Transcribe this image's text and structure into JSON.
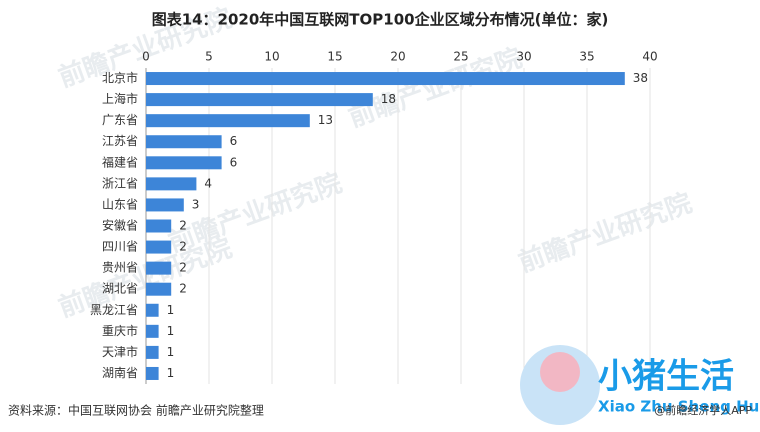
{
  "chart_data": {
    "type": "hbar",
    "title": "图表14：2020年中国互联网TOP100企业区域分布情况(单位：家)",
    "categories": [
      "北京市",
      "上海市",
      "广东省",
      "江苏省",
      "福建省",
      "浙江省",
      "山东省",
      "安徽省",
      "四川省",
      "贵州省",
      "湖北省",
      "黑龙江省",
      "重庆市",
      "天津市",
      "湖南省"
    ],
    "values": [
      38,
      18,
      13,
      6,
      6,
      4,
      3,
      2,
      2,
      2,
      2,
      1,
      1,
      1,
      1
    ],
    "color": "#3d85d8",
    "xlim": [
      0,
      40
    ],
    "xticks": [
      0,
      5,
      10,
      15,
      20,
      25,
      30,
      35,
      40
    ],
    "grid": true,
    "source": "资料来源：中国互联网协会 前瞻产业研究院整理",
    "credit": "@前瞻经济学人APP",
    "watermark": "前瞻产业研究院",
    "logo": "小猪生活",
    "logo_subtitle": "Xiao Zhu Sheng Huo"
  }
}
